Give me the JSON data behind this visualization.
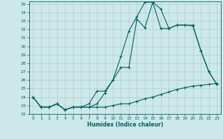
{
  "xlabel": "Humidex (Indice chaleur)",
  "bg_color": "#cce8e8",
  "grid_color": "#aacfcf",
  "line_color": "#006060",
  "xlim": [
    -0.5,
    23.5
  ],
  "ylim": [
    22,
    35.3
  ],
  "yticks": [
    22,
    23,
    24,
    25,
    26,
    27,
    28,
    29,
    30,
    31,
    32,
    33,
    34,
    35
  ],
  "xticks": [
    0,
    1,
    2,
    3,
    4,
    5,
    6,
    7,
    8,
    9,
    10,
    11,
    12,
    13,
    14,
    15,
    16,
    17,
    18,
    19,
    20,
    21,
    22,
    23
  ],
  "series": [
    [
      24.0,
      22.8,
      22.8,
      23.2,
      22.5,
      22.8,
      22.8,
      22.8,
      23.2,
      24.5,
      26.0,
      27.5,
      27.5,
      33.2,
      32.2,
      35.2,
      34.4,
      32.1,
      32.5,
      32.5,
      32.4,
      29.5,
      27.0,
      25.5
    ],
    [
      24.0,
      22.8,
      22.8,
      23.2,
      22.5,
      22.8,
      22.8,
      22.8,
      22.8,
      22.8,
      23.0,
      23.2,
      23.2,
      23.5,
      23.8,
      24.0,
      24.3,
      24.6,
      24.9,
      25.1,
      25.3,
      25.4,
      25.5,
      25.6
    ],
    [
      24.0,
      22.8,
      22.8,
      23.2,
      22.5,
      22.8,
      22.8,
      23.2,
      24.7,
      24.7,
      26.0,
      28.8,
      31.8,
      33.5,
      35.2,
      35.2,
      32.1,
      32.1,
      32.5,
      32.5,
      32.5,
      29.5,
      27.0,
      25.5
    ]
  ]
}
